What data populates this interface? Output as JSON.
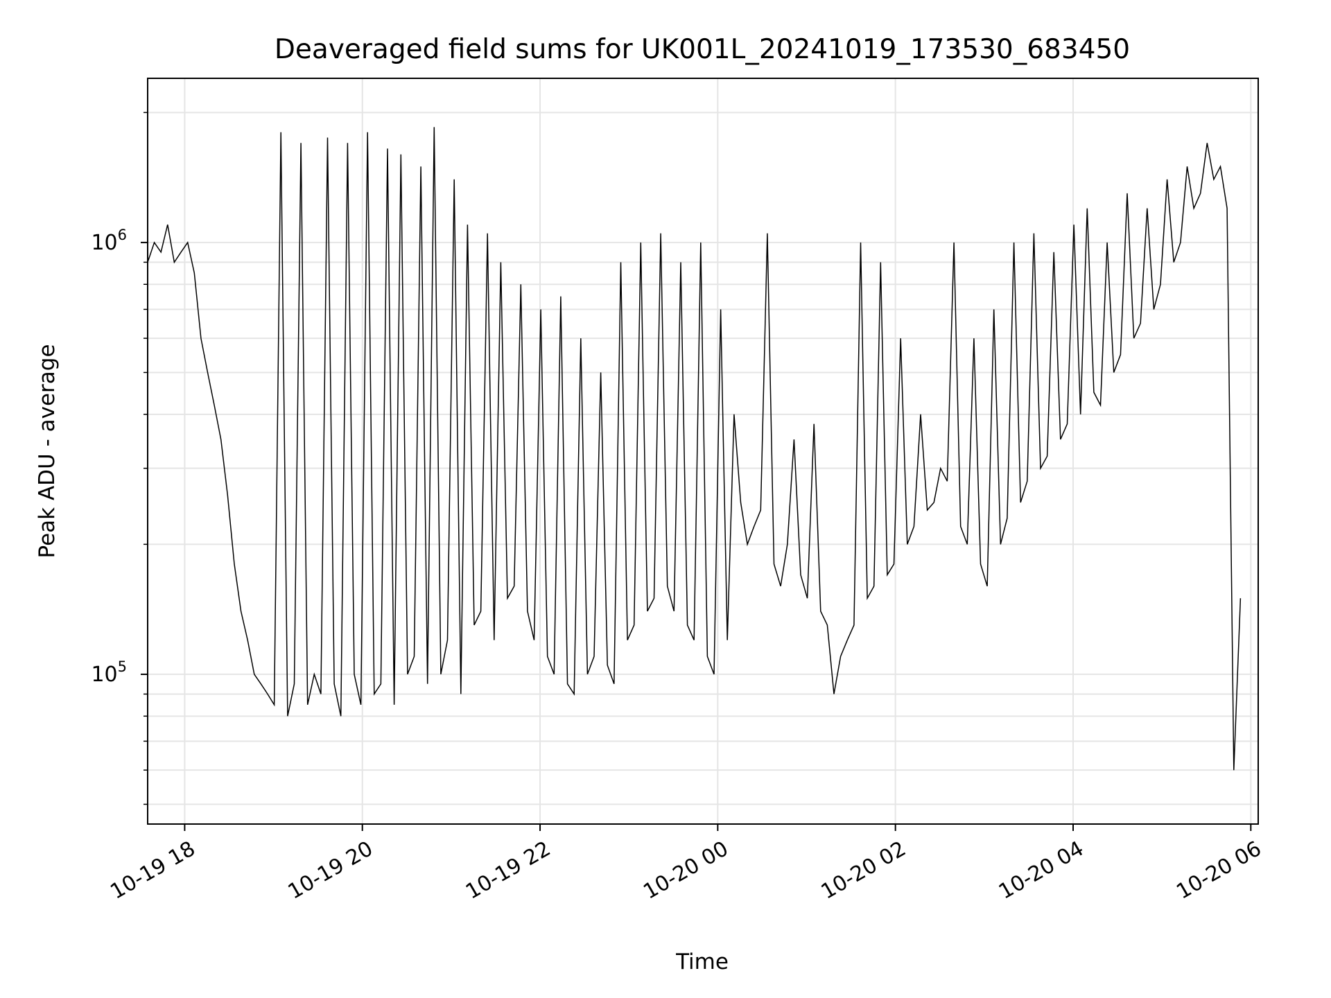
{
  "chart_data": {
    "type": "line",
    "title": "Deaveraged field sums for UK001L_20241019_173530_683450",
    "xlabel": "Time",
    "ylabel": "Peak ADU - average",
    "x_range": [
      "2024-10-19 17:35",
      "2024-10-20 06:05"
    ],
    "y_range": [
      45000,
      2400000
    ],
    "y_scale": "log",
    "grid": true,
    "line_color": "#000000",
    "x_ticks": [
      {
        "value": "2024-10-19 18:00",
        "label": "10-19 18"
      },
      {
        "value": "2024-10-19 20:00",
        "label": "10-19 20"
      },
      {
        "value": "2024-10-19 22:00",
        "label": "10-19 22"
      },
      {
        "value": "2024-10-20 00:00",
        "label": "10-20 00"
      },
      {
        "value": "2024-10-20 02:00",
        "label": "10-20 02"
      },
      {
        "value": "2024-10-20 04:00",
        "label": "10-20 04"
      },
      {
        "value": "2024-10-20 06:00",
        "label": "10-20 06"
      }
    ],
    "y_ticks": [
      {
        "value": 100000,
        "base": "10",
        "exp": "5"
      },
      {
        "value": 1000000,
        "base": "10",
        "exp": "6"
      }
    ],
    "series": [
      {
        "x_start": "2024-10-19 17:35",
        "x_end": "2024-10-20 06:05",
        "step_seconds": 270,
        "values": [
          900000,
          1000000,
          950000,
          1100000,
          900000,
          950000,
          1000000,
          850000,
          600000,
          500000,
          420000,
          350000,
          260000,
          180000,
          140000,
          120000,
          100000,
          95000,
          90000,
          85000,
          1800000,
          80000,
          95000,
          1700000,
          85000,
          100000,
          90000,
          1750000,
          95000,
          80000,
          1700000,
          100000,
          85000,
          1800000,
          90000,
          95000,
          1650000,
          85000,
          1600000,
          100000,
          110000,
          1500000,
          95000,
          1850000,
          100000,
          120000,
          1400000,
          90000,
          1100000,
          130000,
          140000,
          1050000,
          120000,
          900000,
          150000,
          160000,
          800000,
          140000,
          120000,
          700000,
          110000,
          100000,
          750000,
          95000,
          90000,
          600000,
          100000,
          110000,
          500000,
          105000,
          95000,
          900000,
          120000,
          130000,
          1000000,
          140000,
          150000,
          1050000,
          160000,
          140000,
          900000,
          130000,
          120000,
          1000000,
          110000,
          100000,
          700000,
          120000,
          400000,
          250000,
          200000,
          220000,
          240000,
          1050000,
          180000,
          160000,
          200000,
          350000,
          170000,
          150000,
          380000,
          140000,
          130000,
          90000,
          110000,
          120000,
          130000,
          1000000,
          150000,
          160000,
          900000,
          170000,
          180000,
          600000,
          200000,
          220000,
          400000,
          240000,
          250000,
          300000,
          280000,
          1000000,
          220000,
          200000,
          600000,
          180000,
          160000,
          700000,
          200000,
          230000,
          1000000,
          250000,
          280000,
          1050000,
          300000,
          320000,
          950000,
          350000,
          380000,
          1100000,
          400000,
          1200000,
          450000,
          420000,
          1000000,
          500000,
          550000,
          1300000,
          600000,
          650000,
          1200000,
          700000,
          800000,
          1400000,
          900000,
          1000000,
          1500000,
          1200000,
          1300000,
          1700000,
          1400000,
          1500000,
          1200000,
          60000,
          150000
        ]
      }
    ]
  }
}
